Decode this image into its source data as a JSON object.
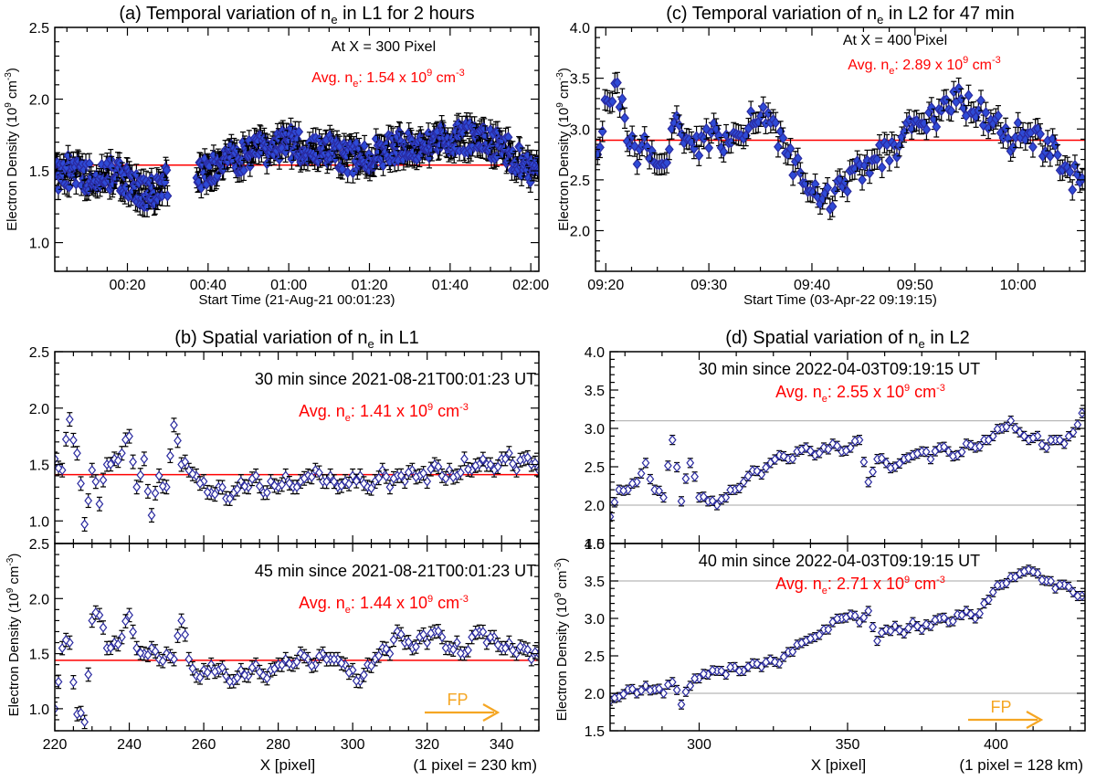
{
  "chart_data": [
    {
      "id": "a",
      "type": "scatter",
      "title": "(a) Temporal variation of n_e in L1 for 2 hours",
      "title_parts": [
        "(a) Temporal variation of n",
        "e",
        " in L1 for 2 hours"
      ],
      "xlabel": "Start Time (21-Aug-21 00:01:23)",
      "ylabel_parts": [
        "Electron Density (10",
        "9",
        " cm",
        "-3",
        ")"
      ],
      "xlim": [
        2,
        122
      ],
      "ylim": [
        0.8,
        2.5
      ],
      "xticks": [
        20,
        40,
        60,
        80,
        100,
        120
      ],
      "xticklabels": [
        "00:20",
        "00:40",
        "01:00",
        "01:20",
        "01:40",
        "02:00"
      ],
      "yticks": [
        1.0,
        1.5,
        2.0,
        2.5
      ],
      "yticklabels": [
        "1.0",
        "1.5",
        "2.0",
        "2.5"
      ],
      "annotation": "At X = 300 Pixel",
      "avg_label": "Avg. n",
      "avg_sub": "e",
      "avg_value": "1.54 x 10",
      "avg_exp": "9",
      "avg_unit": " cm",
      "avg_unit_exp": "-3",
      "avg": 1.54,
      "fill": "#2e4bd6",
      "gridlines": [],
      "gaps": [
        [
          30,
          37
        ]
      ],
      "series": [
        {
          "name": "n_e (dense sampling)",
          "x": [
            2,
            5,
            10,
            15,
            18,
            22,
            25,
            28,
            30,
            37,
            40,
            45,
            50,
            55,
            60,
            64,
            70,
            75,
            80,
            85,
            90,
            95,
            100,
            103,
            110,
            115,
            118,
            122
          ],
          "values": [
            1.45,
            1.5,
            1.45,
            1.48,
            1.45,
            1.38,
            1.33,
            1.4,
            1.42,
            1.45,
            1.5,
            1.57,
            1.62,
            1.66,
            1.7,
            1.65,
            1.65,
            1.58,
            1.6,
            1.65,
            1.68,
            1.7,
            1.72,
            1.74,
            1.7,
            1.62,
            1.55,
            1.45
          ]
        }
      ]
    },
    {
      "id": "c",
      "type": "scatter",
      "title": "(c) Temporal variation of n_e in L2 for 47 min",
      "title_parts": [
        "(c) Temporal variation of n",
        "e",
        " in L2 for 47 min"
      ],
      "xlabel": "Start Time (03-Apr-22 09:19:15)",
      "ylabel_parts": [
        "Electron Density (10",
        "9",
        " cm",
        "-3",
        ")"
      ],
      "xlim": [
        19,
        66.5
      ],
      "ylim": [
        1.6,
        4.0
      ],
      "xticks": [
        20,
        30,
        40,
        50,
        60
      ],
      "xticklabels": [
        "09:20",
        "09:30",
        "09:40",
        "09:50",
        "10:00"
      ],
      "yticks": [
        2.0,
        2.5,
        3.0,
        3.5,
        4.0
      ],
      "yticklabels": [
        "2.0",
        "2.5",
        "3.0",
        "3.5",
        "4.0"
      ],
      "annotation": "At X = 400 Pixel",
      "avg_label": "Avg. n",
      "avg_sub": "e",
      "avg_value": "2.89 x 10",
      "avg_exp": "9",
      "avg_unit": " cm",
      "avg_unit_exp": "-3",
      "avg": 2.89,
      "fill": "#2e4bd6",
      "gridlines": [],
      "series": [
        {
          "name": "n_e",
          "x": [
            19.2,
            20,
            21,
            22,
            23,
            24,
            25,
            26,
            27,
            28,
            29,
            30,
            31,
            32,
            33,
            34,
            35,
            36,
            37,
            38,
            39,
            40,
            41,
            42,
            43,
            44,
            45,
            46,
            47,
            48,
            49,
            50,
            51,
            52,
            53,
            54,
            55,
            56,
            57,
            58,
            59,
            60,
            61,
            62,
            63,
            64,
            65,
            66.3
          ],
          "values": [
            2.8,
            3.2,
            3.4,
            3.0,
            2.75,
            2.85,
            2.6,
            2.8,
            3.05,
            2.9,
            2.85,
            2.95,
            2.9,
            2.85,
            3.0,
            3.05,
            3.15,
            3.0,
            2.9,
            2.7,
            2.5,
            2.35,
            2.25,
            2.35,
            2.45,
            2.55,
            2.6,
            2.7,
            2.75,
            2.8,
            2.95,
            3.1,
            3.05,
            3.15,
            3.25,
            3.3,
            3.2,
            3.2,
            3.1,
            3.0,
            2.9,
            2.95,
            3.0,
            2.9,
            2.8,
            2.7,
            2.55,
            2.45
          ]
        }
      ]
    },
    {
      "id": "b1",
      "type": "scatter",
      "title": "(b) Spatial variation of n_e in L1",
      "title_parts": [
        "(b) Spatial variation of n",
        "e",
        " in L1"
      ],
      "xlabel": "",
      "ylabel_parts": [],
      "xlim": [
        220,
        350
      ],
      "ylim": [
        0.8,
        2.5
      ],
      "xticks": [
        220,
        240,
        260,
        280,
        300,
        320,
        340
      ],
      "xticklabels": [],
      "yticks": [
        1.0,
        1.5,
        2.0,
        2.5
      ],
      "yticklabels": [
        "1.0",
        "1.5",
        "2.0",
        "2.5"
      ],
      "annotation": "30 min since 2021-08-21T00:01:23 UT",
      "avg_label": "Avg. n",
      "avg_sub": "e",
      "avg_value": "1.41 x 10",
      "avg_exp": "9",
      "avg_unit": " cm",
      "avg_unit_exp": "-3",
      "avg": 1.41,
      "fill": "#ffffff",
      "gridlines": [],
      "series": [
        {
          "name": "n_e",
          "x": [
            220,
            222,
            224,
            226,
            228,
            230,
            232,
            234,
            236,
            238,
            240,
            242,
            244,
            246,
            248,
            250,
            252,
            254,
            256,
            258,
            260,
            262,
            264,
            266,
            268,
            270,
            272,
            274,
            276,
            278,
            280,
            282,
            284,
            286,
            288,
            290,
            292,
            294,
            296,
            298,
            300,
            302,
            304,
            306,
            308,
            310,
            312,
            314,
            316,
            318,
            320,
            322,
            324,
            326,
            328,
            330,
            332,
            334,
            336,
            338,
            340,
            342,
            344,
            346,
            348,
            350
          ],
          "values": [
            1.55,
            1.45,
            1.9,
            1.6,
            0.97,
            1.45,
            1.15,
            1.5,
            1.55,
            1.6,
            1.75,
            1.3,
            1.55,
            1.05,
            1.4,
            1.3,
            1.85,
            1.5,
            1.45,
            1.4,
            1.35,
            1.25,
            1.3,
            1.2,
            1.25,
            1.35,
            1.3,
            1.4,
            1.25,
            1.35,
            1.3,
            1.4,
            1.3,
            1.35,
            1.4,
            1.45,
            1.35,
            1.4,
            1.3,
            1.35,
            1.4,
            1.4,
            1.3,
            1.35,
            1.45,
            1.3,
            1.4,
            1.35,
            1.45,
            1.4,
            1.35,
            1.5,
            1.4,
            1.45,
            1.4,
            1.55,
            1.45,
            1.5,
            1.5,
            1.45,
            1.55,
            1.6,
            1.45,
            1.55,
            1.5,
            1.45
          ]
        }
      ]
    },
    {
      "id": "b2",
      "type": "scatter",
      "title": "",
      "title_parts": [],
      "xlabel": "X  [pixel]",
      "ylabel_parts": [
        "Electron Density (10",
        "9",
        " cm",
        "-3",
        ")"
      ],
      "xlim": [
        220,
        350
      ],
      "ylim": [
        0.8,
        2.5
      ],
      "xticks": [
        220,
        240,
        260,
        280,
        300,
        320,
        340
      ],
      "xticklabels": [
        "220",
        "240",
        "260",
        "280",
        "300",
        "320",
        "340"
      ],
      "yticks": [
        1.0,
        1.5,
        2.0,
        2.5
      ],
      "yticklabels": [
        "1.0",
        "1.5",
        "2.0",
        "2.5"
      ],
      "annotation": "45 min since 2021-08-21T00:01:23 UT",
      "avg_label": "Avg. n",
      "avg_sub": "e",
      "avg_value": "1.44 x 10",
      "avg_exp": "9",
      "avg_unit": " cm",
      "avg_unit_exp": "-3",
      "avg": 1.44,
      "fill": "#ffffff",
      "gridlines": [],
      "fp_label": "FP",
      "scale_note": "(1 pixel = 230 km)",
      "series": [
        {
          "name": "n_e",
          "x": [
            220,
            222,
            224,
            226,
            228,
            230,
            232,
            234,
            236,
            238,
            240,
            242,
            244,
            246,
            248,
            250,
            252,
            254,
            256,
            258,
            260,
            262,
            264,
            266,
            268,
            270,
            272,
            274,
            276,
            278,
            280,
            282,
            284,
            286,
            288,
            290,
            292,
            294,
            296,
            298,
            300,
            302,
            304,
            306,
            308,
            310,
            312,
            314,
            316,
            318,
            320,
            322,
            324,
            326,
            328,
            330,
            332,
            334,
            336,
            338,
            340,
            342,
            344,
            346,
            348,
            350
          ],
          "values": [
            1.0,
            1.55,
            1.6,
            0.95,
            0.88,
            1.8,
            1.85,
            1.55,
            1.6,
            1.65,
            1.85,
            1.55,
            1.5,
            1.55,
            1.45,
            1.5,
            1.45,
            1.8,
            1.45,
            1.3,
            1.35,
            1.4,
            1.35,
            1.3,
            1.25,
            1.35,
            1.3,
            1.4,
            1.3,
            1.35,
            1.4,
            1.45,
            1.4,
            1.5,
            1.45,
            1.4,
            1.5,
            1.45,
            1.45,
            1.4,
            1.35,
            1.25,
            1.4,
            1.45,
            1.55,
            1.5,
            1.7,
            1.6,
            1.55,
            1.65,
            1.6,
            1.7,
            1.65,
            1.55,
            1.6,
            1.5,
            1.65,
            1.7,
            1.6,
            1.65,
            1.55,
            1.6,
            1.5,
            1.55,
            1.45,
            1.5
          ]
        }
      ]
    },
    {
      "id": "d1",
      "type": "scatter",
      "title": "(d) Spatial variation of n_e in L2",
      "title_parts": [
        "(d) Spatial variation of n",
        "e",
        " in L2"
      ],
      "xlabel": "",
      "ylabel_parts": [],
      "xlim": [
        270,
        430
      ],
      "ylim": [
        1.5,
        4.0
      ],
      "xticks": [
        300,
        350,
        400
      ],
      "xticklabels": [],
      "yticks": [
        1.5,
        2.0,
        2.5,
        3.0,
        3.5,
        4.0
      ],
      "yticklabels": [
        "1.5",
        "2.0",
        "2.5",
        "3.0",
        "3.5",
        "4.0"
      ],
      "annotation": "30 min since 2022-04-03T09:19:15 UT",
      "avg_label": "Avg. n",
      "avg_sub": "e",
      "avg_value": "2.55 x 10",
      "avg_exp": "9",
      "avg_unit": " cm",
      "avg_unit_exp": "-3",
      "fill": "#ffffff",
      "gridlines": [
        2.0,
        3.1
      ],
      "series": [
        {
          "name": "n_e",
          "x": [
            270,
            273,
            276,
            279,
            282,
            285,
            288,
            291,
            294,
            297,
            300,
            303,
            306,
            309,
            312,
            315,
            318,
            321,
            324,
            327,
            330,
            333,
            336,
            339,
            342,
            345,
            348,
            351,
            354,
            357,
            360,
            363,
            366,
            369,
            372,
            375,
            378,
            381,
            384,
            387,
            390,
            393,
            396,
            399,
            402,
            405,
            408,
            411,
            414,
            417,
            420,
            423,
            426,
            429
          ],
          "values": [
            1.85,
            2.2,
            2.2,
            2.3,
            2.55,
            2.2,
            2.1,
            2.85,
            2.05,
            2.55,
            2.1,
            2.05,
            2.0,
            2.1,
            2.2,
            2.3,
            2.45,
            2.4,
            2.55,
            2.65,
            2.6,
            2.7,
            2.75,
            2.65,
            2.75,
            2.8,
            2.7,
            2.75,
            2.85,
            2.3,
            2.6,
            2.55,
            2.5,
            2.6,
            2.65,
            2.7,
            2.6,
            2.75,
            2.7,
            2.65,
            2.8,
            2.75,
            2.85,
            2.9,
            3.0,
            3.1,
            2.95,
            2.85,
            2.9,
            2.75,
            2.85,
            2.8,
            2.95,
            3.2
          ]
        }
      ]
    },
    {
      "id": "d2",
      "type": "scatter",
      "title": "",
      "title_parts": [],
      "xlabel": "X  [pixel]",
      "ylabel_parts": [
        "Electron Density (10",
        "9",
        " cm",
        "-3",
        ")"
      ],
      "xlim": [
        270,
        430
      ],
      "ylim": [
        1.5,
        4.0
      ],
      "xticks": [
        300,
        350,
        400
      ],
      "xticklabels": [
        "300",
        "350",
        "400"
      ],
      "yticks": [
        1.5,
        2.0,
        2.5,
        3.0,
        3.5,
        4.0
      ],
      "yticklabels": [
        "1.5",
        "2.0",
        "2.5",
        "3.0",
        "3.5",
        "4.0"
      ],
      "annotation": "40 min since 2022-04-03T09:19:15 UT",
      "avg_label": "Avg. n",
      "avg_sub": "e",
      "avg_value": "2.71 x 10",
      "avg_exp": "9",
      "avg_unit": " cm",
      "avg_unit_exp": "-3",
      "fill": "#ffffff",
      "gridlines": [
        2.0,
        3.5
      ],
      "fp_label": "FP",
      "scale_note": "(1 pixel = 128 km)",
      "series": [
        {
          "name": "n_e",
          "x": [
            270,
            273,
            276,
            279,
            282,
            285,
            288,
            291,
            294,
            297,
            300,
            303,
            306,
            309,
            312,
            315,
            318,
            321,
            324,
            327,
            330,
            333,
            336,
            339,
            342,
            345,
            348,
            351,
            354,
            357,
            360,
            363,
            366,
            369,
            372,
            375,
            378,
            381,
            384,
            387,
            390,
            393,
            396,
            399,
            402,
            405,
            408,
            411,
            414,
            417,
            420,
            423,
            426,
            429
          ],
          "values": [
            1.9,
            1.95,
            2.05,
            2.0,
            2.1,
            2.05,
            2.0,
            2.15,
            1.85,
            2.1,
            2.2,
            2.25,
            2.3,
            2.25,
            2.35,
            2.3,
            2.4,
            2.35,
            2.45,
            2.4,
            2.55,
            2.65,
            2.7,
            2.75,
            2.85,
            2.95,
            3.0,
            3.05,
            2.95,
            3.1,
            2.7,
            2.85,
            2.9,
            2.8,
            2.95,
            2.85,
            2.9,
            3.0,
            2.95,
            3.05,
            3.1,
            3.0,
            3.2,
            3.35,
            3.45,
            3.55,
            3.6,
            3.65,
            3.6,
            3.5,
            3.4,
            3.45,
            3.35,
            3.3
          ]
        }
      ]
    }
  ]
}
